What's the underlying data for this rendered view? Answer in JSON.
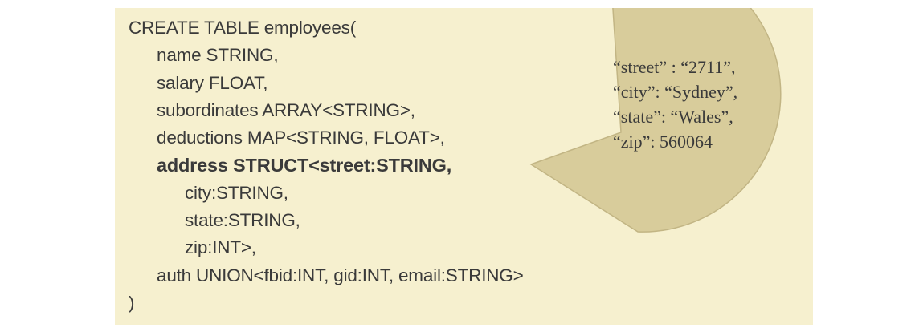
{
  "colors": {
    "slide_background": "#f6f0cf",
    "bubble_fill": "#d8cc9b",
    "bubble_stroke": "#c2b584",
    "text": "#3a3a3a"
  },
  "code": {
    "lines": [
      "CREATE TABLE employees(",
      "name STRING,",
      "salary FLOAT,",
      "subordinates ARRAY<STRING>,",
      "deductions MAP<STRING, FLOAT>,",
      "address STRUCT<street:STRING,",
      "city:STRING,",
      "state:STRING,",
      "zip:INT>,",
      "auth UNION<fbid:INT, gid:INT, email:STRING>",
      ")"
    ]
  },
  "bubble": {
    "lines": [
      "“street” : “2711”,",
      "“city”: “Sydney”,",
      "“state”: “Wales”,",
      "“zip”: 560064"
    ]
  }
}
